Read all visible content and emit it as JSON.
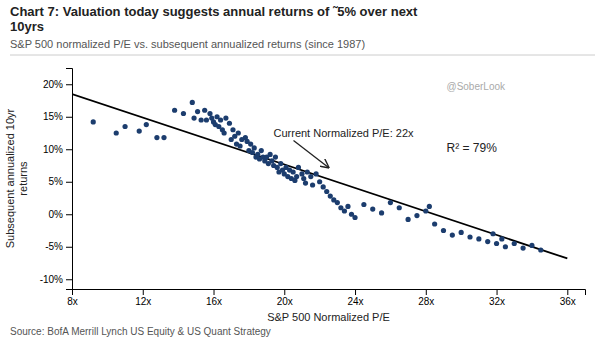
{
  "chart_data": {
    "type": "scatter",
    "title": [
      "Chart 7: Valuation today suggests annual returns of ˜5% over next",
      "10yrs"
    ],
    "subtitle": "S&P 500 normalized P/E vs. subsequent annualized returns (since 1987)",
    "x_label": "S&P 500 Normalized P/E",
    "y_label": "Subsequent annualized 10yr\nreturns",
    "source": "Source: BofA Merrill Lynch US Equity & US Quant Strategy",
    "annotations": [
      {
        "text": "R² = 79%"
      },
      {
        "text": "Current Normalized P/E: 22x",
        "x": 22.5,
        "y": 0.072
      },
      {
        "text": "@SoberLook"
      }
    ],
    "grid": false,
    "xlim": [
      8,
      37
    ],
    "ylim": [
      -0.115,
      0.225
    ],
    "xticks": [
      {
        "value": 8,
        "label": "8x"
      },
      {
        "value": 12,
        "label": "12x"
      },
      {
        "value": 16,
        "label": "16x"
      },
      {
        "value": 20,
        "label": "20x"
      },
      {
        "value": 24,
        "label": "24x"
      },
      {
        "value": 28,
        "label": "28x"
      },
      {
        "value": 32,
        "label": "32x"
      },
      {
        "value": 36,
        "label": "36x"
      }
    ],
    "yticks": [
      {
        "value": -0.1,
        "label": "-10%"
      },
      {
        "value": -0.05,
        "label": "-5%"
      },
      {
        "value": 0.0,
        "label": "0%"
      },
      {
        "value": 0.05,
        "label": "5%"
      },
      {
        "value": 0.1,
        "label": "10%"
      },
      {
        "value": 0.15,
        "label": "15%"
      },
      {
        "value": 0.2,
        "label": "20%"
      }
    ],
    "series": [
      {
        "type": "scatter",
        "color": "#1c3d6e",
        "x": [
          9.2,
          10.5,
          11.0,
          11.8,
          12.2,
          12.8,
          13.2,
          13.8,
          14.3,
          14.8,
          14.9,
          15.1,
          15.3,
          15.5,
          15.6,
          15.8,
          15.9,
          16.0,
          16.1,
          16.2,
          16.3,
          16.4,
          16.5,
          16.6,
          16.7,
          16.9,
          17.0,
          17.1,
          17.2,
          17.3,
          17.4,
          17.5,
          17.6,
          17.8,
          17.9,
          18.0,
          18.1,
          18.2,
          18.3,
          18.4,
          18.5,
          18.6,
          18.7,
          18.8,
          18.9,
          19.0,
          19.1,
          19.2,
          19.3,
          19.4,
          19.5,
          19.6,
          19.7,
          19.8,
          19.9,
          20.0,
          20.1,
          20.2,
          20.3,
          20.4,
          20.5,
          20.6,
          20.7,
          20.8,
          21.0,
          21.1,
          21.2,
          21.3,
          21.5,
          21.6,
          21.8,
          22.0,
          22.2,
          22.4,
          22.6,
          22.8,
          23.0,
          23.2,
          23.4,
          23.6,
          23.8,
          24.0,
          24.5,
          25.0,
          25.5,
          26.0,
          26.5,
          27.0,
          27.5,
          28.0,
          28.2,
          28.5,
          29.0,
          29.5,
          30.0,
          30.5,
          31.0,
          31.5,
          31.8,
          32.0,
          32.3,
          32.5,
          33.0,
          33.5,
          34.0,
          34.5
        ],
        "values": [
          0.142,
          0.125,
          0.135,
          0.128,
          0.138,
          0.118,
          0.118,
          0.16,
          0.155,
          0.172,
          0.148,
          0.158,
          0.145,
          0.16,
          0.145,
          0.155,
          0.148,
          0.142,
          0.138,
          0.15,
          0.135,
          0.145,
          0.13,
          0.125,
          0.148,
          0.14,
          0.115,
          0.13,
          0.12,
          0.108,
          0.125,
          0.105,
          0.115,
          0.118,
          0.112,
          0.098,
          0.108,
          0.095,
          0.102,
          0.088,
          0.092,
          0.085,
          0.098,
          0.088,
          0.082,
          0.088,
          0.078,
          0.092,
          0.082,
          0.075,
          0.088,
          0.072,
          0.065,
          0.078,
          0.068,
          0.062,
          0.072,
          0.058,
          0.068,
          0.055,
          0.065,
          0.052,
          0.058,
          0.072,
          0.062,
          0.055,
          0.048,
          0.065,
          0.058,
          0.045,
          0.062,
          0.05,
          0.042,
          0.035,
          0.028,
          0.022,
          0.018,
          0.01,
          0.005,
          0.012,
          0.0,
          -0.005,
          0.015,
          0.008,
          0.002,
          0.018,
          0.01,
          -0.008,
          -0.002,
          0.005,
          0.012,
          -0.015,
          -0.025,
          -0.032,
          -0.028,
          -0.035,
          -0.038,
          -0.042,
          -0.03,
          -0.045,
          -0.038,
          -0.05,
          -0.045,
          -0.052,
          -0.048,
          -0.055
        ]
      },
      {
        "type": "line",
        "color": "#000000",
        "x": [
          8,
          36
        ],
        "values": [
          0.185,
          -0.068
        ]
      }
    ]
  }
}
